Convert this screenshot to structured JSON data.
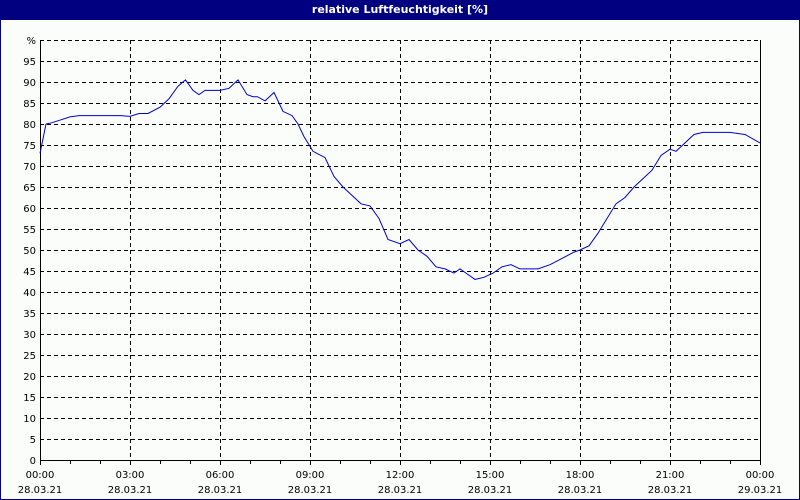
{
  "chart_data": {
    "type": "line",
    "title": "relative Luftfeuchtigkeit [%]",
    "xlabel": "",
    "ylabel": "%",
    "ylim": [
      0,
      100
    ],
    "y_ticks": [
      0,
      5,
      10,
      15,
      20,
      25,
      30,
      35,
      40,
      45,
      50,
      55,
      60,
      65,
      70,
      75,
      80,
      85,
      90,
      95
    ],
    "y_unit_label": "%",
    "grid": true,
    "x_ticks": [
      {
        "time": "00:00",
        "date": "28.03.21"
      },
      {
        "time": "03:00",
        "date": "28.03.21"
      },
      {
        "time": "06:00",
        "date": "28.03.21"
      },
      {
        "time": "09:00",
        "date": "28.03.21"
      },
      {
        "time": "12:00",
        "date": "28.03.21"
      },
      {
        "time": "15:00",
        "date": "28.03.21"
      },
      {
        "time": "18:00",
        "date": "28.03.21"
      },
      {
        "time": "21:00",
        "date": "28.03.21"
      },
      {
        "time": "00:00",
        "date": "29.03.21"
      }
    ],
    "series": [
      {
        "name": "relative Luftfeuchtigkeit",
        "color": "#0000cc",
        "x_hours": [
          0,
          0.2,
          0.4,
          0.7,
          1.0,
          1.3,
          1.6,
          1.9,
          2.3,
          2.7,
          3.0,
          3.3,
          3.6,
          4.0,
          4.3,
          4.6,
          4.85,
          5.1,
          5.3,
          5.5,
          5.7,
          6.0,
          6.3,
          6.6,
          6.9,
          7.1,
          7.25,
          7.5,
          7.8,
          8.1,
          8.4,
          8.6,
          8.8,
          9.1,
          9.5,
          9.8,
          10.1,
          10.4,
          10.7,
          11.0,
          11.3,
          11.6,
          12.0,
          12.3,
          12.6,
          12.9,
          13.2,
          13.5,
          13.8,
          14.0,
          14.2,
          14.5,
          14.8,
          15.1,
          15.4,
          15.7,
          16.0,
          16.3,
          16.6,
          17.0,
          17.4,
          17.8,
          18.0,
          18.3,
          18.6,
          18.9,
          19.2,
          19.5,
          19.8,
          20.1,
          20.4,
          20.7,
          21.0,
          21.2,
          21.5,
          21.8,
          22.1,
          22.5,
          23.0,
          23.5,
          24.0
        ],
        "values": [
          73,
          80,
          80.3,
          81.0,
          81.7,
          82,
          82,
          82,
          82,
          82,
          81.8,
          82.5,
          82.5,
          84,
          86,
          89,
          90.5,
          88,
          87,
          88,
          88,
          88,
          88.5,
          90.5,
          87,
          86.5,
          86.5,
          85.5,
          87.5,
          83,
          82,
          80,
          77,
          73.5,
          72,
          67.5,
          65,
          63,
          61,
          60.5,
          57.5,
          52.5,
          51.5,
          52.5,
          50,
          48.5,
          46,
          45.5,
          44.5,
          45.5,
          44.5,
          43,
          43.5,
          44.5,
          46,
          46.5,
          45.5,
          45.5,
          45.5,
          46.5,
          48,
          49.5,
          50,
          51,
          54,
          57.5,
          61,
          62.5,
          65,
          67,
          69,
          72.5,
          74,
          73.5,
          75.5,
          77.5,
          78,
          78,
          78,
          77.5,
          75.5
        ]
      }
    ]
  },
  "header": {
    "title": "relative Luftfeuchtigkeit [%]"
  }
}
